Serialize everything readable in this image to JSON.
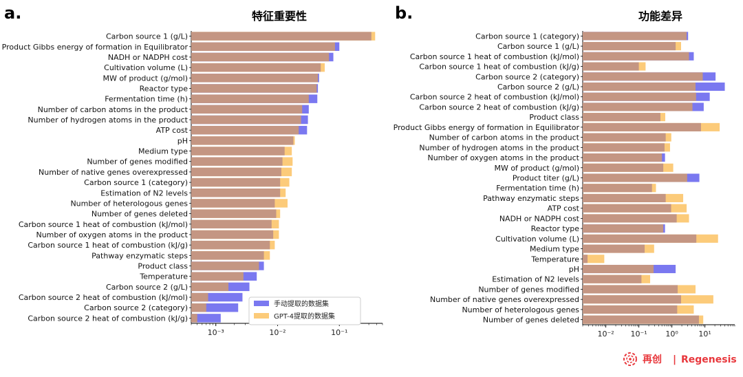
{
  "panel_a": {
    "letter": "a.",
    "chart_data": {
      "type": "bar",
      "orientation": "horizontal",
      "title": "特征重要性",
      "xscale": "log",
      "xlim": [
        0.0004,
        0.5
      ],
      "xticks": [
        {
          "value": 0.001,
          "label": "10⁻³"
        },
        {
          "value": 0.01,
          "label": "10⁻²"
        },
        {
          "value": 0.1,
          "label": "10⁻¹"
        }
      ],
      "legend_position": "bottom-right",
      "categories": [
        "Carbon source 1 (g/L)",
        "Product Gibbs energy of formation in Equilibrator",
        "NADH or NADPH cost",
        "Cultivation volume (L)",
        "MW of product (g/mol)",
        "Reactor type",
        "Fermentation time (h)",
        "Number of carbon atoms in the product",
        "Number of hydrogen atoms in the product",
        "ATP cost",
        "pH",
        "Medium type",
        "Number of genes modified",
        "Number of native genes overexpressed",
        "Carbon source 1 (category)",
        "Estimation of N2 levels",
        "Number of heterologous genes",
        "Number of genes deleted",
        "Carbon source 1 heat of combustion (kJ/mol)",
        "Number of oxygen atoms in the product",
        "Carbon source 1 heat of combustion (kJ/g)",
        "Pathway enzymatic steps",
        "Product class",
        "Temperature",
        "Carbon source 2 (g/L)",
        "Carbon source 2 heat of combustion (kJ/mol)",
        "Carbon source 2 (category)",
        "Carbon source 2 heat of combustion (kJ/g)"
      ],
      "series": [
        {
          "name": "手动提取的数据集",
          "color": "#7a78f0",
          "values": [
            0.33,
            0.1,
            0.08,
            0.05,
            0.047,
            0.045,
            0.044,
            0.032,
            0.031,
            0.03,
            0.018,
            0.013,
            0.012,
            0.0115,
            0.011,
            0.011,
            0.009,
            0.0095,
            0.008,
            0.0085,
            0.0075,
            0.006,
            0.006,
            0.0046,
            0.0035,
            0.0027,
            0.0023,
            0.0012
          ]
        },
        {
          "name": "GPT-4提取的数据集",
          "color": "#fccb7a",
          "values": [
            0.38,
            0.085,
            0.068,
            0.058,
            0.045,
            0.043,
            0.032,
            0.025,
            0.024,
            0.022,
            0.019,
            0.017,
            0.0175,
            0.017,
            0.0155,
            0.0135,
            0.0145,
            0.011,
            0.0105,
            0.0105,
            0.009,
            0.0075,
            0.005,
            0.0028,
            0.0016,
            0.00075,
            0.0007,
            0.0005
          ]
        }
      ]
    }
  },
  "panel_b": {
    "letter": "b.",
    "chart_data": {
      "type": "bar",
      "orientation": "horizontal",
      "title": "功能差异",
      "xscale": "log",
      "xlim": [
        0.002,
        80
      ],
      "xticks": [
        {
          "value": 0.01,
          "label": "10⁻²"
        },
        {
          "value": 0.1,
          "label": "10⁻¹"
        },
        {
          "value": 1,
          "label": "10⁰"
        },
        {
          "value": 10,
          "label": "10¹"
        }
      ],
      "categories": [
        "Carbon source 1 (category)",
        "Carbon source 1 (g/L)",
        "Carbon source 1 heat of combustion (kJ/mol)",
        "Carbon source 1 heat of combustion (kJ/g)",
        "Carbon source 2 (category)",
        "Carbon source 2 (g/L)",
        "Carbon source 2 heat of combustion (kJ/mol)",
        "Carbon source 2 heat of combustion (kJ/g)",
        "Product class",
        "Product Gibbs energy of formation in Equilibrator",
        "Number of carbon atoms in the product",
        "Number of hydrogen atoms in the product",
        "Number of oxygen atoms in the product",
        "MW of product (g/mol)",
        "Product titer (g/L)",
        "Fermentation time (h)",
        "Pathway enzymatic steps",
        "ATP cost",
        "NADH or NADPH cost",
        "Reactor type",
        "Cultivation volume (L)",
        "Medium type",
        "Temperature",
        "pH",
        "Estimation of N2 levels",
        "Number of genes modified",
        "Number of native genes overexpressed",
        "Number of heterologous genes",
        "Number of genes deleted"
      ],
      "series": [
        {
          "name": "手动提取的数据集",
          "color": "#7a78f0",
          "values": [
            3.1,
            1.3,
            4.6,
            0.1,
            21,
            40,
            14,
            9.2,
            0.45,
            7.6,
            0.65,
            0.6,
            0.62,
            0.55,
            6.8,
            0.25,
            0.65,
            0.95,
            1.4,
            0.62,
            5.5,
            0.15,
            0.0028,
            1.3,
            0.12,
            1.5,
            1.9,
            1.45,
            6.6
          ]
        },
        {
          "name": "GPT-4提取的数据集",
          "color": "#fccb7a",
          "values": [
            2.8,
            1.9,
            3.3,
            0.16,
            8.6,
            5.2,
            5.4,
            4.2,
            0.63,
            28,
            0.96,
            0.88,
            0.5,
            1.1,
            2.9,
            0.33,
            2.2,
            2.8,
            3.3,
            0.55,
            25,
            0.29,
            0.009,
            0.28,
            0.22,
            5.2,
            18,
            4.6,
            8.9
          ]
        }
      ]
    }
  },
  "legend": {
    "items": [
      {
        "label": "手动提取的数据集",
        "color": "#7a78f0"
      },
      {
        "label": "GPT-4提取的数据集",
        "color": "#fccb7a"
      }
    ]
  },
  "brand": {
    "name": "再创",
    "separator": "|",
    "english": "Regenesis",
    "color": "#e8373c"
  },
  "overlap_color": "#c49683"
}
